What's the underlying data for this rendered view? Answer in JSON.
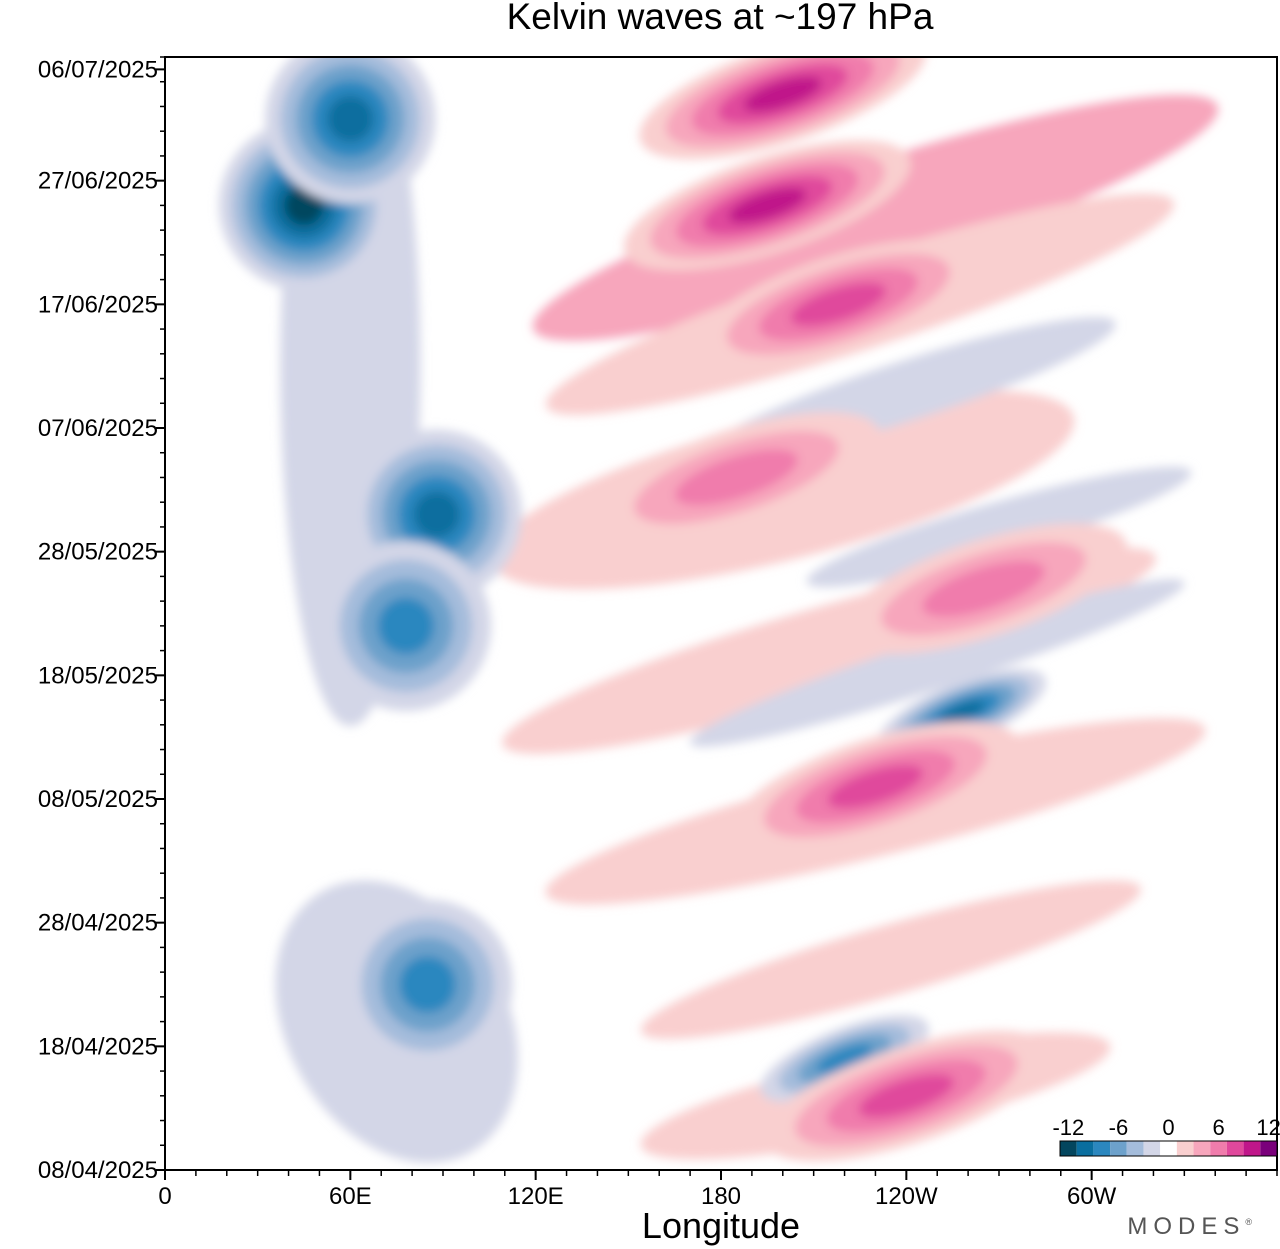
{
  "chart_data": {
    "type": "heatmap",
    "title": "Kelvin waves at ~197 hPa",
    "xlabel": "Longitude",
    "ylabel": "",
    "x_ticks": [
      "0",
      "60E",
      "120E",
      "180",
      "120W",
      "60W"
    ],
    "x_range_degrees_east": [
      0,
      360
    ],
    "y_ticks": [
      "08/04/2025",
      "18/04/2025",
      "28/04/2025",
      "08/05/2025",
      "18/05/2025",
      "28/05/2025",
      "07/06/2025",
      "17/06/2025",
      "27/06/2025",
      "06/07/2025"
    ],
    "y_range": [
      "08/04/2025",
      "07/07/2025"
    ],
    "grid": false,
    "legend": "bottom-right",
    "colorbar": {
      "labels": [
        "-12",
        "-6",
        "0",
        "6",
        "12"
      ],
      "levels": [
        -12,
        -10,
        -8,
        -6,
        -4,
        -2,
        0,
        2,
        4,
        6,
        8,
        10,
        12
      ],
      "colors": [
        "#03465e",
        "#0a6e9f",
        "#2b87bf",
        "#6da1cb",
        "#a4bcdb",
        "#d3d6e7",
        "#ffffff",
        "#f9cfcf",
        "#f7a6bc",
        "#f07cac",
        "#e0489c",
        "#c0168a",
        "#7a007b"
      ]
    },
    "features": [
      {
        "sign": "negative",
        "peak": -12,
        "lon": 45,
        "date": "25/06/2025"
      },
      {
        "sign": "negative",
        "peak": -10,
        "lon": 60,
        "date": "02/07/2025"
      },
      {
        "sign": "negative",
        "peak": -10,
        "lon": 88,
        "date": "31/05/2025"
      },
      {
        "sign": "negative",
        "peak": -8,
        "lon": 78,
        "date": "22/05/2025"
      },
      {
        "sign": "negative",
        "peak": -8,
        "lon": 85,
        "date": "23/04/2025"
      },
      {
        "sign": "negative",
        "peak": -10,
        "lon": 258,
        "date": "15/05/2025"
      },
      {
        "sign": "negative",
        "peak": -8,
        "lon": 220,
        "date": "17/04/2025"
      },
      {
        "sign": "positive",
        "peak": 10,
        "lon": 200,
        "date": "04/07/2025"
      },
      {
        "sign": "positive",
        "peak": 10,
        "lon": 195,
        "date": "25/06/2025"
      },
      {
        "sign": "positive",
        "peak": 8,
        "lon": 218,
        "date": "17/06/2025"
      },
      {
        "sign": "positive",
        "peak": 6,
        "lon": 185,
        "date": "03/06/2025"
      },
      {
        "sign": "positive",
        "peak": 8,
        "lon": 230,
        "date": "09/05/2025"
      },
      {
        "sign": "positive",
        "peak": 6,
        "lon": 265,
        "date": "25/05/2025"
      },
      {
        "sign": "positive",
        "peak": 8,
        "lon": 240,
        "date": "14/04/2025"
      }
    ]
  },
  "brand": {
    "name": "MODES",
    "mark": "®"
  }
}
